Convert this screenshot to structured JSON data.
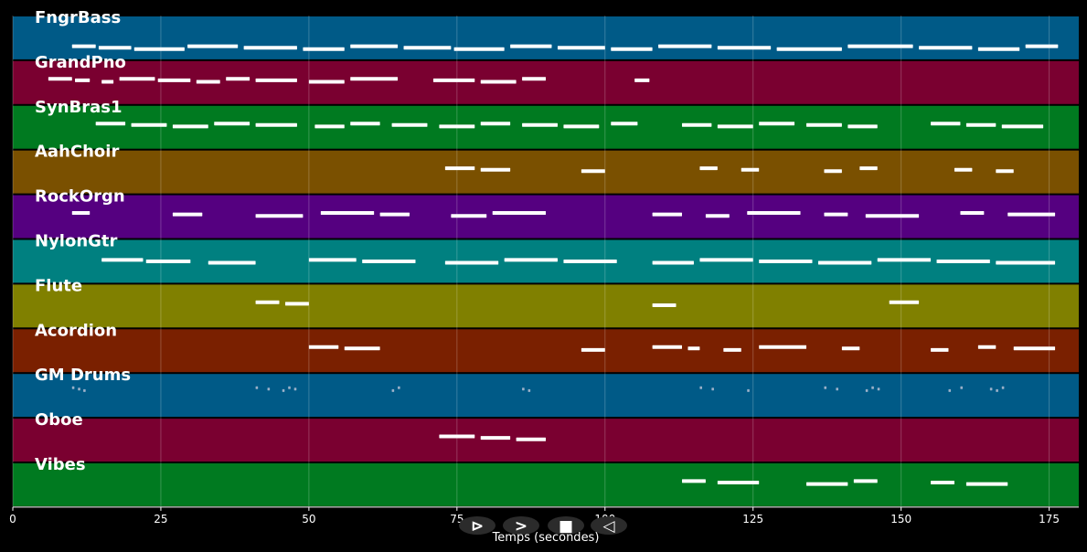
{
  "chart_data": {
    "type": "piano-roll",
    "xlabel": "Temps (secondes)",
    "xlim": [
      0,
      180
    ],
    "x_ticks": [
      0,
      25,
      50,
      75,
      100,
      125,
      150,
      175
    ],
    "grid": true,
    "tracks": [
      {
        "name": "FngrBass",
        "color": "#005a87",
        "segments": [
          [
            10,
            14
          ],
          [
            14.5,
            20
          ],
          [
            20.5,
            29
          ],
          [
            29.5,
            38
          ],
          [
            39,
            48
          ],
          [
            49,
            56
          ],
          [
            57,
            65
          ],
          [
            66,
            74
          ],
          [
            74.5,
            83
          ],
          [
            84,
            91
          ],
          [
            92,
            100
          ],
          [
            101,
            108
          ],
          [
            109,
            118
          ],
          [
            119,
            128
          ],
          [
            129,
            140
          ],
          [
            141,
            152
          ],
          [
            153,
            162
          ],
          [
            163,
            170
          ],
          [
            171,
            176.5
          ]
        ]
      },
      {
        "name": "GrandPno",
        "color": "#7a0030",
        "segments": [
          [
            6,
            10
          ],
          [
            10.5,
            13
          ],
          [
            15,
            17
          ],
          [
            18,
            24
          ],
          [
            24.5,
            30
          ],
          [
            31,
            35
          ],
          [
            36,
            40
          ],
          [
            41,
            48
          ],
          [
            50,
            56
          ],
          [
            57,
            65
          ],
          [
            71,
            78
          ],
          [
            79,
            85
          ],
          [
            86,
            90
          ],
          [
            105,
            107.5
          ]
        ]
      },
      {
        "name": "SynBras1",
        "color": "#007a20",
        "segments": [
          [
            14,
            19
          ],
          [
            20,
            26
          ],
          [
            27,
            33
          ],
          [
            34,
            40
          ],
          [
            41,
            48
          ],
          [
            51,
            56
          ],
          [
            57,
            62
          ],
          [
            64,
            70
          ],
          [
            72,
            78
          ],
          [
            79,
            84
          ],
          [
            86,
            92
          ],
          [
            93,
            99
          ],
          [
            101,
            105.5
          ],
          [
            113,
            118
          ],
          [
            119,
            125
          ],
          [
            126,
            132
          ],
          [
            134,
            140
          ],
          [
            141,
            146
          ],
          [
            155,
            160
          ],
          [
            161,
            166
          ],
          [
            167,
            174
          ]
        ]
      },
      {
        "name": "AahChoir",
        "color": "#7a5000",
        "segments": [
          [
            73,
            78
          ],
          [
            79,
            84
          ],
          [
            96,
            100
          ],
          [
            116,
            119
          ],
          [
            123,
            126
          ],
          [
            137,
            140
          ],
          [
            143,
            146
          ],
          [
            159,
            162
          ],
          [
            166,
            169
          ]
        ]
      },
      {
        "name": "RockOrgn",
        "color": "#550080",
        "segments": [
          [
            10,
            13
          ],
          [
            27,
            32
          ],
          [
            41,
            49
          ],
          [
            52,
            61
          ],
          [
            62,
            67
          ],
          [
            74,
            80
          ],
          [
            81,
            90
          ],
          [
            108,
            113
          ],
          [
            117,
            121
          ],
          [
            124,
            133
          ],
          [
            137,
            141
          ],
          [
            144,
            153
          ],
          [
            160,
            164
          ],
          [
            168,
            176
          ]
        ]
      },
      {
        "name": "NylonGtr",
        "color": "#008080",
        "segments": [
          [
            15,
            22
          ],
          [
            22.5,
            30
          ],
          [
            33,
            41
          ],
          [
            50,
            58
          ],
          [
            59,
            68
          ],
          [
            73,
            82
          ],
          [
            83,
            92
          ],
          [
            93,
            102
          ],
          [
            108,
            115
          ],
          [
            116,
            125
          ],
          [
            126,
            135
          ],
          [
            136,
            145
          ],
          [
            146,
            155
          ],
          [
            156,
            165
          ],
          [
            166,
            176
          ]
        ]
      },
      {
        "name": "Flute",
        "color": "#808000",
        "segments": [
          [
            41,
            45
          ],
          [
            46,
            50
          ],
          [
            108,
            112
          ],
          [
            148,
            153
          ]
        ]
      },
      {
        "name": "Acordion",
        "color": "#7a2000",
        "segments": [
          [
            50,
            55
          ],
          [
            56,
            62
          ],
          [
            96,
            100
          ],
          [
            108,
            113
          ],
          [
            114,
            116
          ],
          [
            120,
            123
          ],
          [
            126,
            134
          ],
          [
            140,
            143
          ],
          [
            155,
            158
          ],
          [
            163,
            166
          ],
          [
            169,
            176
          ]
        ]
      },
      {
        "name": "GM Drums",
        "color": "#005a87",
        "segments": [
          [
            10,
            10.4
          ],
          [
            11,
            11.4
          ],
          [
            11.9,
            12.3
          ],
          [
            41,
            41.4
          ],
          [
            43,
            43.4
          ],
          [
            45.5,
            45.9
          ],
          [
            46.5,
            46.9
          ],
          [
            47.5,
            47.9
          ],
          [
            64,
            64.4
          ],
          [
            65,
            65.4
          ],
          [
            86,
            86.4
          ],
          [
            87,
            87.4
          ],
          [
            116,
            116.4
          ],
          [
            118,
            118.4
          ],
          [
            124,
            124.4
          ],
          [
            137,
            137.4
          ],
          [
            139,
            139.4
          ],
          [
            144,
            144.4
          ],
          [
            145,
            145.4
          ],
          [
            146,
            146.4
          ],
          [
            158,
            158.4
          ],
          [
            160,
            160.4
          ],
          [
            165,
            165.4
          ],
          [
            166,
            166.4
          ],
          [
            167,
            167.4
          ]
        ]
      },
      {
        "name": "Oboe",
        "color": "#7a0030",
        "segments": [
          [
            72,
            78
          ],
          [
            79,
            84
          ],
          [
            85,
            90
          ]
        ]
      },
      {
        "name": "Vibes",
        "color": "#007a20",
        "segments": [
          [
            113,
            117
          ],
          [
            119,
            126
          ],
          [
            134,
            141
          ],
          [
            142,
            146
          ],
          [
            155,
            159
          ],
          [
            161,
            168
          ]
        ]
      }
    ]
  },
  "player_controls": [
    {
      "icon": "play-icon",
      "glyph": "⊳"
    },
    {
      "icon": "forward-icon",
      "glyph": ">"
    },
    {
      "icon": "stop-icon",
      "glyph": "■"
    },
    {
      "icon": "rewind-icon",
      "glyph": "◁"
    }
  ]
}
